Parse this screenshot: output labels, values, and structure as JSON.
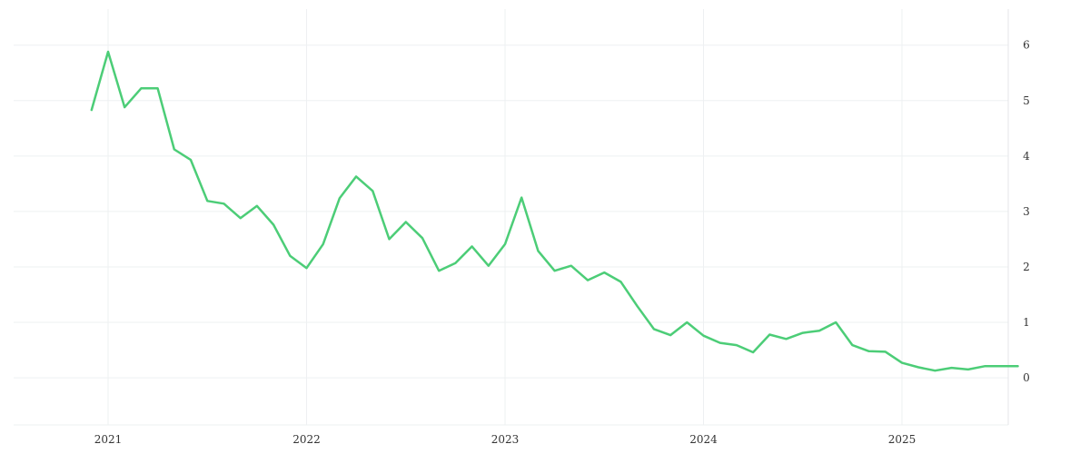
{
  "chart_data": {
    "type": "line",
    "x_type": "date",
    "x": [
      "2020-12",
      "2021-01",
      "2021-02",
      "2021-03",
      "2021-04",
      "2021-05",
      "2021-06",
      "2021-07",
      "2021-08",
      "2021-09",
      "2021-10",
      "2021-11",
      "2021-12",
      "2022-01",
      "2022-02",
      "2022-03",
      "2022-04",
      "2022-05",
      "2022-06",
      "2022-07",
      "2022-08",
      "2022-09",
      "2022-10",
      "2022-11",
      "2022-12",
      "2023-01",
      "2023-02",
      "2023-03",
      "2023-04",
      "2023-05",
      "2023-06",
      "2023-07",
      "2023-08",
      "2023-09",
      "2023-10",
      "2023-11",
      "2023-12",
      "2024-01",
      "2024-02",
      "2024-03",
      "2024-04",
      "2024-05",
      "2024-06",
      "2024-07",
      "2024-08",
      "2024-09",
      "2024-10",
      "2024-11",
      "2024-12",
      "2025-01",
      "2025-02",
      "2025-03",
      "2025-04",
      "2025-05",
      "2025-06",
      "2025-07",
      "2025-08"
    ],
    "series": [
      {
        "name": "",
        "color": "#4ccd77",
        "values": [
          4.83,
          5.88,
          4.88,
          5.22,
          5.22,
          4.12,
          3.93,
          3.19,
          3.14,
          2.88,
          3.1,
          2.76,
          2.2,
          1.98,
          2.41,
          3.24,
          3.63,
          3.37,
          2.5,
          2.81,
          2.52,
          1.93,
          2.07,
          2.37,
          2.02,
          2.41,
          3.25,
          2.29,
          1.93,
          2.02,
          1.76,
          1.9,
          1.73,
          1.29,
          0.88,
          0.77,
          1.0,
          0.76,
          0.63,
          0.59,
          0.46,
          0.78,
          0.7,
          0.81,
          0.85,
          1.0,
          0.59,
          0.48,
          0.47,
          0.27,
          0.19,
          0.13,
          0.18,
          0.15,
          0.21,
          0.21,
          0.21
        ]
      }
    ],
    "x_ticks": [
      "2021",
      "2022",
      "2023",
      "2024",
      "2025"
    ],
    "y_ticks": [
      0,
      1,
      2,
      3,
      4,
      5,
      6
    ],
    "ylim": [
      -0.85,
      6.65
    ],
    "y_axis_position": "right",
    "grid": true,
    "legend": "none",
    "title": "",
    "xlabel": "",
    "ylabel": ""
  }
}
